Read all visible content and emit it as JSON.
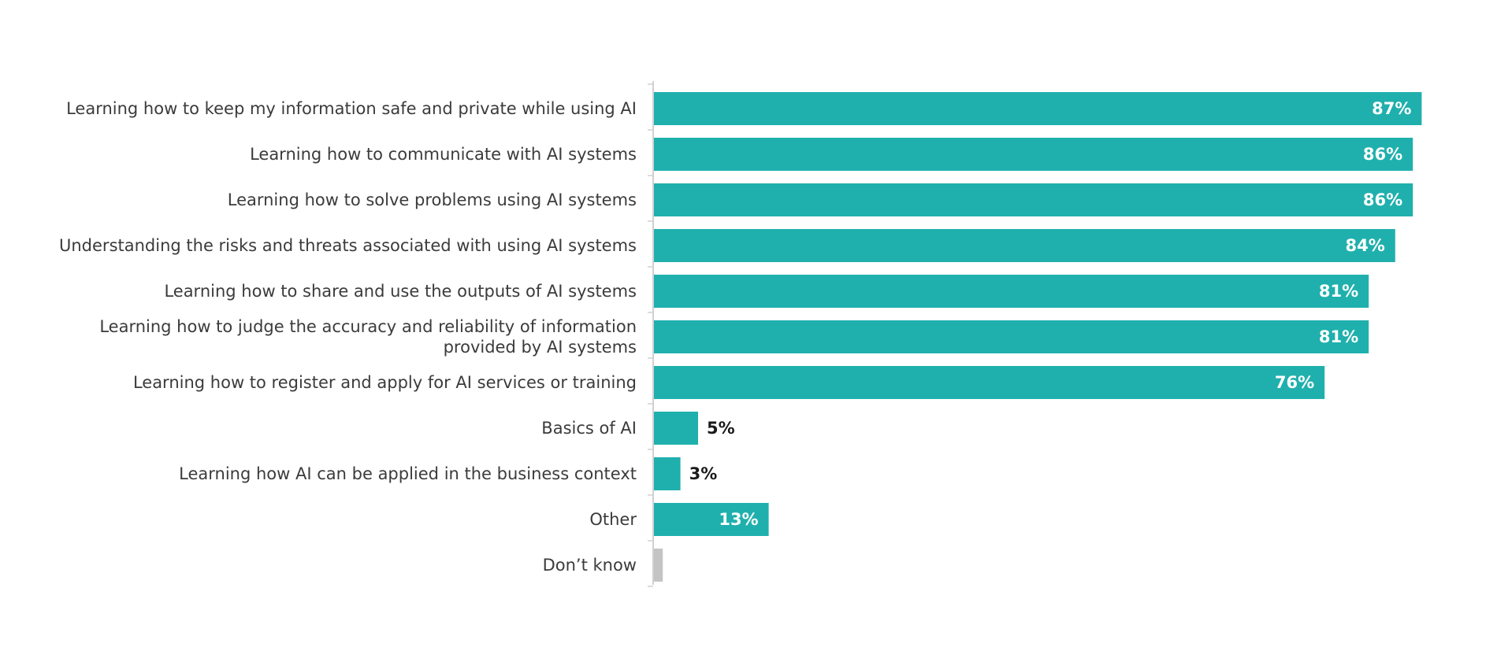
{
  "chart_data": {
    "type": "bar",
    "orientation": "horizontal",
    "title": "",
    "xlabel": "",
    "ylabel": "",
    "xlim": [
      0,
      100
    ],
    "grid": false,
    "legend": "none",
    "categories": [
      "Learning how to keep my information safe and private while using AI",
      "Learning how to communicate with AI systems",
      "Learning how to solve problems using AI systems",
      "Understanding the risks and threats associated with using AI systems",
      "Learning how to share and use the outputs of AI systems",
      "Learning how to judge the accuracy and reliability of information provided by AI systems",
      "Learning how to register and apply for AI services or training",
      "Basics of AI",
      "Learning how AI can be applied in the business context",
      "Other",
      "Don’t know"
    ],
    "category_lines": [
      [
        "Learning how to keep my information safe and private while using AI"
      ],
      [
        "Learning how to communicate with AI systems"
      ],
      [
        "Learning how to solve problems using AI systems"
      ],
      [
        "Understanding the risks and threats associated with using AI systems"
      ],
      [
        "Learning how to share and use the outputs of AI systems"
      ],
      [
        "Learning how to judge the accuracy and reliability of information",
        "provided by AI systems"
      ],
      [
        "Learning how to register and apply for AI services or training"
      ],
      [
        "Basics of AI"
      ],
      [
        "Learning how AI can be applied in the business context"
      ],
      [
        "Other"
      ],
      [
        "Don’t know"
      ]
    ],
    "values": [
      87,
      86,
      86,
      84,
      81,
      81,
      76,
      5,
      3,
      13,
      1
    ],
    "value_labels": [
      "87%",
      "86%",
      "86%",
      "84%",
      "81%",
      "81%",
      "76%",
      "5%",
      "3%",
      "13%",
      ""
    ],
    "bar_colors": [
      "#1fb0ad",
      "#1fb0ad",
      "#1fb0ad",
      "#1fb0ad",
      "#1fb0ad",
      "#1fb0ad",
      "#1fb0ad",
      "#1fb0ad",
      "#1fb0ad",
      "#1fb0ad",
      "#c4c4c4"
    ],
    "value_label_inside_color": "#ffffff",
    "value_label_outside_color": "#1a1a1a",
    "axis_color": "#d0d0d0"
  }
}
